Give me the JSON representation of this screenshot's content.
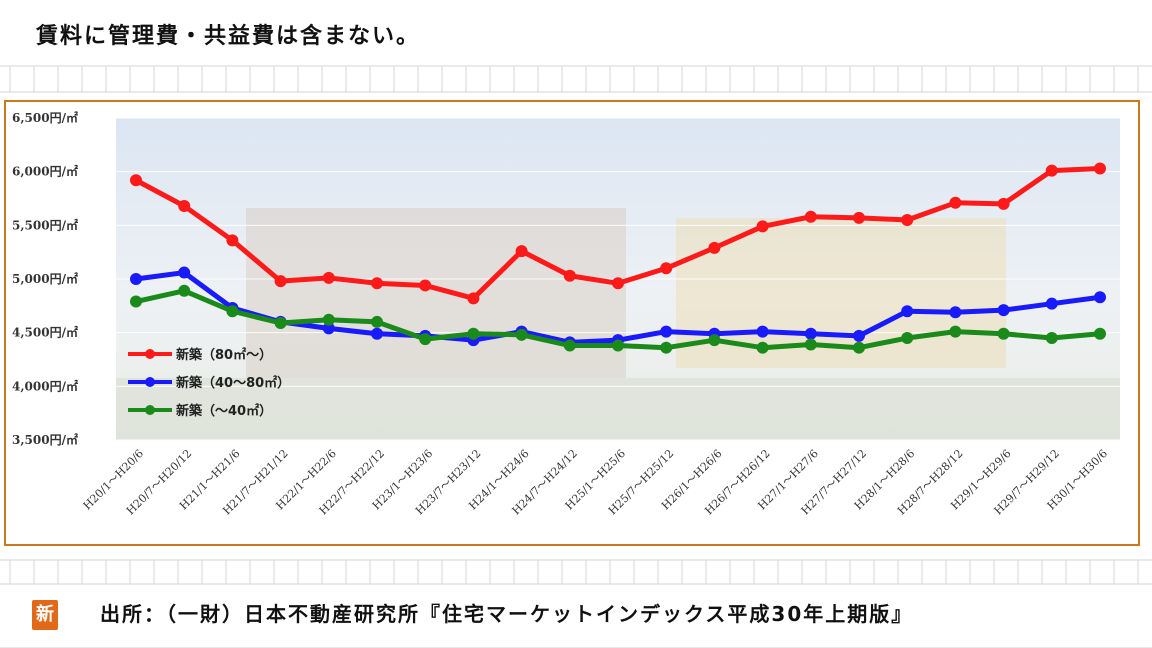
{
  "page": {
    "top_note": "賃料に管理費・共益費は含まない。",
    "source_note": "出所：（一財）日本不動産研究所『住宅マーケットインデックス平成30年上期版』",
    "logo_char": "新"
  },
  "chart_data": {
    "type": "line",
    "title": "",
    "xlabel": "",
    "ylabel": "",
    "ylim": [
      3500,
      6500
    ],
    "yticks": [
      3500,
      4000,
      4500,
      5000,
      5500,
      6000,
      6500
    ],
    "ytick_labels": [
      "3,500円/㎡",
      "4,000円/㎡",
      "4,500円/㎡",
      "5,000円/㎡",
      "5,500円/㎡",
      "6,000円/㎡",
      "6,500円/㎡"
    ],
    "grid": true,
    "legend_placement": "left-lower",
    "categories": [
      "H20/1～H20/6",
      "H20/7～H20/12",
      "H21/1～H21/6",
      "H21/7～H21/12",
      "H22/1～H22/6",
      "H22/7～H22/12",
      "H23/1～H23/6",
      "H23/7～H23/12",
      "H24/1～H24/6",
      "H24/7～H24/12",
      "H25/1～H25/6",
      "H25/7～H25/12",
      "H26/1～H26/6",
      "H26/7～H26/12",
      "H27/1～H27/6",
      "H27/7～H27/12",
      "H28/1～H28/6",
      "H28/7～H28/12",
      "H29/1～H29/6",
      "H29/7～H29/12",
      "H30/1～H30/6"
    ],
    "series": [
      {
        "name": "新築（80㎡～）",
        "color": "#ff1a1a",
        "values": [
          5920,
          5680,
          5360,
          4980,
          5010,
          4960,
          4940,
          4820,
          5260,
          5030,
          4960,
          5100,
          5290,
          5490,
          5580,
          5570,
          5550,
          5710,
          5700,
          6010,
          6030
        ]
      },
      {
        "name": "新築（40～80㎡）",
        "color": "#1a1aff",
        "values": [
          5000,
          5060,
          4730,
          4600,
          4540,
          4490,
          4470,
          4430,
          4510,
          4410,
          4430,
          4510,
          4490,
          4510,
          4490,
          4470,
          4700,
          4690,
          4710,
          4770,
          4830
        ]
      },
      {
        "name": "新築（～40㎡）",
        "color": "#1a8a1a",
        "values": [
          4790,
          4890,
          4700,
          4590,
          4620,
          4600,
          4440,
          4490,
          4480,
          4380,
          4380,
          4360,
          4430,
          4360,
          4390,
          4360,
          4450,
          4510,
          4490,
          4450,
          4490
        ]
      }
    ]
  }
}
